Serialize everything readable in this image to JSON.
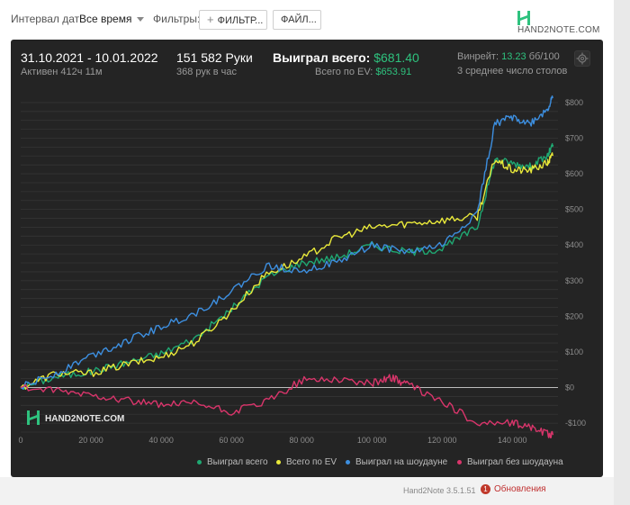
{
  "toolbar": {
    "interval_label": "Интервал дат:",
    "interval_value": "Все время",
    "filters_label": "Фильтры:",
    "filter_button": "ФИЛЬТР...",
    "file_button": "ФАЙЛ...",
    "logo_text": "HAND2NOTE.COM"
  },
  "header": {
    "date_range": "31.10.2021 - 10.01.2022",
    "active": "Активен 412ч 11м",
    "hands": "151 582 Руки",
    "hands_per_hour": "368 рук в час",
    "won_label": "Выиграл всего:",
    "won_value": "$681.40",
    "ev_label": "Всего по EV:",
    "ev_value": "$653.91",
    "winrate_label": "Винрейт:",
    "winrate_value": "13.23",
    "winrate_suffix": "бб/100",
    "tables": "3 среднее число столов"
  },
  "watermark": "HAND2NOTE.COM",
  "colors": {
    "won": "#1fa872",
    "ev": "#e9e93a",
    "showdown": "#3d8fe0",
    "no_showdown": "#d9356b",
    "panel": "#242424"
  },
  "chart_data": {
    "type": "line",
    "x_ticks": [
      0,
      20000,
      40000,
      60000,
      80000,
      100000,
      120000,
      140000
    ],
    "x_tick_labels": [
      "0",
      "20 000",
      "40 000",
      "60 000",
      "80 000",
      "100 000",
      "120 000",
      "140 000"
    ],
    "y_ticks": [
      -100,
      0,
      100,
      200,
      300,
      400,
      500,
      600,
      700,
      800
    ],
    "y_tick_labels": [
      "-$100",
      "$0",
      "$100",
      "$200",
      "$300",
      "$400",
      "$500",
      "$600",
      "$700",
      "$800"
    ],
    "xlim": [
      0,
      153000
    ],
    "ylim": [
      -130,
      820
    ],
    "grid": true,
    "legend_position": "bottom",
    "series": [
      {
        "name": "Выиграл всего",
        "color": "#1fa872",
        "x": [
          0,
          10000,
          20000,
          30000,
          40000,
          50000,
          60000,
          70000,
          80000,
          90000,
          100000,
          110000,
          120000,
          130000,
          135000,
          140000,
          145000,
          150000,
          151582
        ],
        "values": [
          0,
          30,
          45,
          70,
          95,
          140,
          220,
          310,
          350,
          365,
          400,
          380,
          390,
          450,
          640,
          630,
          620,
          650,
          681
        ]
      },
      {
        "name": "Всего по EV",
        "color": "#e9e93a",
        "x": [
          0,
          10000,
          20000,
          30000,
          40000,
          50000,
          60000,
          70000,
          80000,
          90000,
          100000,
          110000,
          120000,
          130000,
          135000,
          140000,
          145000,
          150000,
          151582
        ],
        "values": [
          0,
          40,
          40,
          65,
          85,
          130,
          215,
          320,
          360,
          420,
          450,
          460,
          470,
          480,
          640,
          610,
          610,
          630,
          654
        ]
      },
      {
        "name": "Выиграл на шоудауне",
        "color": "#3d8fe0",
        "x": [
          0,
          10000,
          20000,
          30000,
          40000,
          50000,
          60000,
          70000,
          80000,
          90000,
          100000,
          110000,
          120000,
          130000,
          135000,
          140000,
          145000,
          150000,
          151582
        ],
        "values": [
          0,
          40,
          90,
          130,
          170,
          210,
          270,
          340,
          330,
          350,
          400,
          380,
          400,
          490,
          740,
          760,
          740,
          780,
          815
        ]
      },
      {
        "name": "Выиграл без шоудауна",
        "color": "#d9356b",
        "x": [
          0,
          10000,
          20000,
          30000,
          40000,
          50000,
          60000,
          70000,
          80000,
          90000,
          100000,
          105000,
          110000,
          120000,
          130000,
          140000,
          145000,
          150000,
          151582
        ],
        "values": [
          0,
          -10,
          -20,
          -35,
          -50,
          -45,
          -70,
          -40,
          20,
          25,
          10,
          30,
          10,
          -40,
          -100,
          -100,
          -110,
          -130,
          -133
        ]
      }
    ]
  },
  "footer": {
    "version": "Hand2Note 3.5.1.51",
    "updates_badge": "1",
    "updates": "Обновления"
  }
}
